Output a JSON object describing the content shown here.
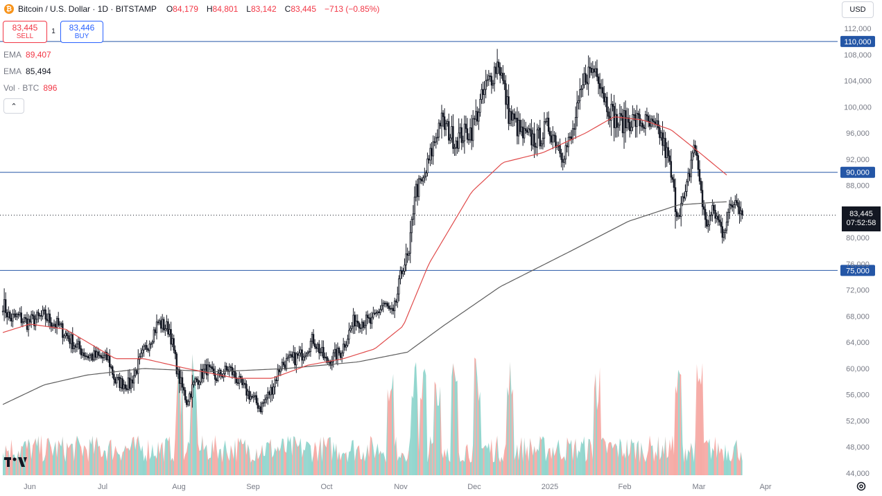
{
  "header": {
    "symbol": "Bitcoin / U.S. Dollar · 1D · BITSTAMP",
    "coin_glyph": "₿",
    "ohlc": [
      {
        "k": "O",
        "v": "84,179"
      },
      {
        "k": "H",
        "v": "84,801"
      },
      {
        "k": "L",
        "v": "83,142"
      },
      {
        "k": "C",
        "v": "83,445"
      }
    ],
    "change": "−713 (−0.85%)"
  },
  "trade": {
    "sell_price": "83,445",
    "sell_label": "SELL",
    "spread": "1",
    "buy_price": "83,446",
    "buy_label": "BUY"
  },
  "indicators": [
    {
      "name": "EMA",
      "value": "89,407"
    },
    {
      "name": "EMA",
      "value": "85,494"
    },
    {
      "name": "Vol · BTC",
      "value": "896"
    }
  ],
  "collapse_glyph": "⌃",
  "currency": "USD",
  "current_price": {
    "price": "83,445",
    "countdown": "07:52:58"
  },
  "colors": {
    "up": "#131722",
    "down": "#131722",
    "ema_fast": "#e04a4a",
    "ema_slow": "#5d5d5d",
    "hline": "#2456a6",
    "vol_up": "#7fcfc6",
    "vol_down": "#f59c96",
    "axis_text": "#787b86"
  },
  "chart_data": {
    "type": "candlestick",
    "title": "Bitcoin / U.S. Dollar · 1D · BITSTAMP",
    "ylim": [
      44000,
      112000
    ],
    "y_ticks": [
      "112,000",
      "108,000",
      "104,000",
      "100,000",
      "96,000",
      "92,000",
      "88,000",
      "84,000",
      "80,000",
      "76,000",
      "72,000",
      "68,000",
      "64,000",
      "60,000",
      "56,000",
      "52,000",
      "48,000",
      "44,000"
    ],
    "x_ticks": [
      "Jun",
      "Jul",
      "Aug",
      "Sep",
      "Oct",
      "Nov",
      "Dec",
      "2025",
      "Feb",
      "Mar",
      "Apr"
    ],
    "horizontal_levels": [
      {
        "value": 110000,
        "label": "110,000"
      },
      {
        "value": 90000,
        "label": "90,000"
      },
      {
        "value": 75000,
        "label": "75,000"
      }
    ],
    "current_level": 83445,
    "closes": [
      [
        1,
        70000
      ],
      [
        6,
        67600
      ],
      [
        12,
        67900
      ],
      [
        18,
        67000
      ],
      [
        24,
        67500
      ],
      [
        30,
        68000
      ],
      [
        40,
        66500
      ],
      [
        50,
        64000
      ],
      [
        60,
        62000
      ],
      [
        75,
        61500
      ],
      [
        80,
        58000
      ],
      [
        90,
        57500
      ],
      [
        100,
        62500
      ],
      [
        110,
        67000
      ],
      [
        118,
        66000
      ],
      [
        124,
        59000
      ],
      [
        130,
        55000
      ],
      [
        136,
        58000
      ],
      [
        144,
        60000
      ],
      [
        150,
        58500
      ],
      [
        160,
        60000
      ],
      [
        168,
        57500
      ],
      [
        174,
        56000
      ],
      [
        182,
        54000
      ],
      [
        190,
        57000
      ],
      [
        196,
        60500
      ],
      [
        210,
        62000
      ],
      [
        219,
        64500
      ],
      [
        228,
        61000
      ],
      [
        238,
        62500
      ],
      [
        248,
        67500
      ],
      [
        260,
        67000
      ],
      [
        268,
        70000
      ],
      [
        275,
        68000
      ],
      [
        282,
        76000
      ],
      [
        286,
        77000
      ],
      [
        290,
        87000
      ],
      [
        296,
        88500
      ],
      [
        308,
        98000
      ],
      [
        318,
        95000
      ],
      [
        330,
        96500
      ],
      [
        340,
        103000
      ],
      [
        349,
        107000
      ],
      [
        356,
        99000
      ],
      [
        366,
        95500
      ],
      [
        376,
        95000
      ],
      [
        384,
        97000
      ],
      [
        394,
        93000
      ],
      [
        400,
        95000
      ],
      [
        410,
        105000
      ],
      [
        418,
        106000
      ],
      [
        424,
        101000
      ],
      [
        432,
        97500
      ],
      [
        442,
        98000
      ],
      [
        452,
        97500
      ],
      [
        462,
        96000
      ],
      [
        468,
        92000
      ],
      [
        474,
        84000
      ],
      [
        480,
        86000
      ],
      [
        486,
        94500
      ],
      [
        490,
        89000
      ],
      [
        494,
        82000
      ],
      [
        500,
        84000
      ],
      [
        506,
        81000
      ],
      [
        510,
        83500
      ],
      [
        516,
        86500
      ],
      [
        520,
        83445
      ]
    ],
    "ema_fast": [
      [
        1,
        65500
      ],
      [
        20,
        66800
      ],
      [
        45,
        66000
      ],
      [
        80,
        61500
      ],
      [
        100,
        61500
      ],
      [
        130,
        60000
      ],
      [
        165,
        58500
      ],
      [
        190,
        58500
      ],
      [
        215,
        60500
      ],
      [
        240,
        61500
      ],
      [
        262,
        63000
      ],
      [
        282,
        66500
      ],
      [
        300,
        76000
      ],
      [
        330,
        87000
      ],
      [
        352,
        91500
      ],
      [
        380,
        93000
      ],
      [
        410,
        96000
      ],
      [
        430,
        98500
      ],
      [
        450,
        98000
      ],
      [
        470,
        96500
      ],
      [
        490,
        93000
      ],
      [
        510,
        89407
      ]
    ],
    "ema_slow": [
      [
        1,
        54500
      ],
      [
        30,
        57500
      ],
      [
        60,
        59000
      ],
      [
        100,
        60000
      ],
      [
        150,
        59500
      ],
      [
        200,
        60000
      ],
      [
        250,
        61000
      ],
      [
        285,
        62500
      ],
      [
        310,
        66500
      ],
      [
        350,
        72500
      ],
      [
        400,
        78000
      ],
      [
        440,
        82500
      ],
      [
        475,
        85000
      ],
      [
        500,
        85400
      ],
      [
        510,
        85494
      ]
    ],
    "volume": {
      "name": "Vol · BTC",
      "last": 896
    }
  }
}
